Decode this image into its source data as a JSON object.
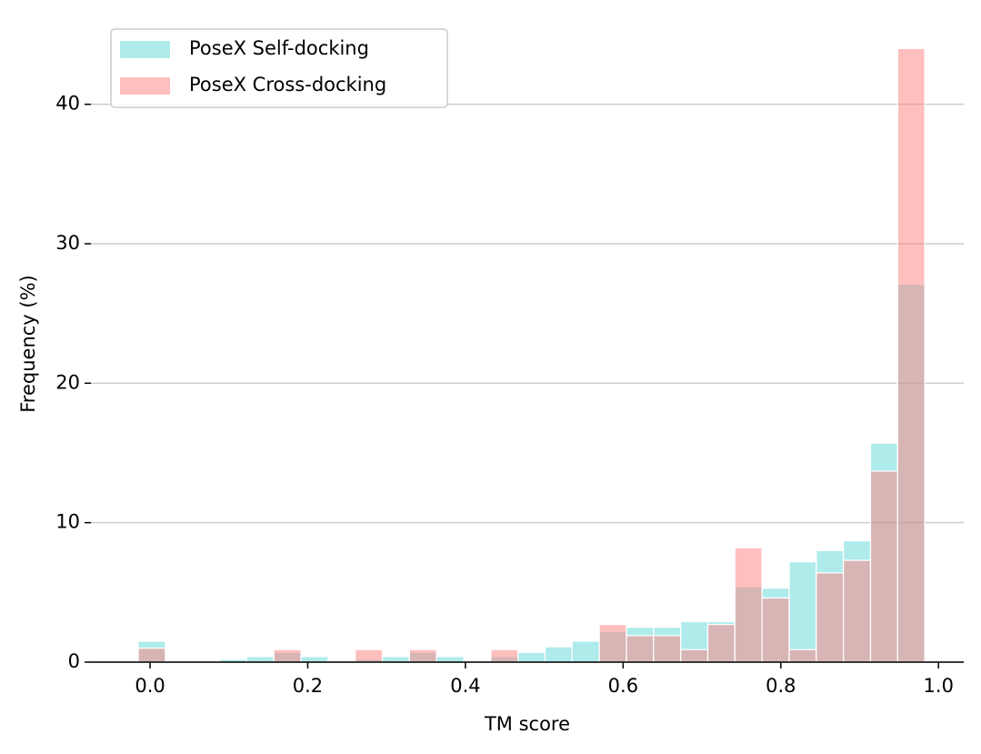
{
  "chart_data": {
    "type": "histogram",
    "xlabel": "TM score",
    "ylabel": "Frequency (%)",
    "bins": [
      -0.015,
      0.0194,
      0.0538,
      0.0882,
      0.1226,
      0.157,
      0.1914,
      0.2258,
      0.2602,
      0.2946,
      0.329,
      0.3634,
      0.3978,
      0.4322,
      0.4666,
      0.501,
      0.5354,
      0.5698,
      0.6042,
      0.6386,
      0.673,
      0.7074,
      0.7418,
      0.7762,
      0.8106,
      0.845,
      0.8794,
      0.9138,
      0.9482,
      0.9826
    ],
    "series": [
      {
        "name": "PoseX Self-docking",
        "color": "#40d0d0",
        "opacity": 0.42,
        "values": [
          1.5,
          0,
          0,
          0.2,
          0.4,
          0.7,
          0.4,
          0,
          0.2,
          0.4,
          0.7,
          0.4,
          0,
          0.4,
          0.7,
          1.1,
          1.5,
          2.2,
          2.5,
          2.5,
          2.9,
          2.9,
          5.4,
          5.3,
          7.2,
          8.0,
          8.7,
          15.7,
          27.1
        ]
      },
      {
        "name": "PoseX Cross-docking",
        "color": "#ff7f7f",
        "opacity": 0.5,
        "values": [
          1.0,
          0,
          0,
          0,
          0,
          0.9,
          0,
          0,
          0.9,
          0,
          0.9,
          0,
          0,
          0.9,
          0,
          0,
          0,
          2.7,
          1.9,
          1.9,
          0.9,
          2.7,
          8.2,
          4.6,
          0.9,
          6.4,
          7.3,
          13.7,
          44.0
        ]
      }
    ],
    "xlim": [
      -0.075,
      1.032
    ],
    "ylim": [
      0,
      45
    ],
    "xticks": [
      {
        "value": 0,
        "label": "0.0"
      },
      {
        "value": 0.2,
        "label": "0.2"
      },
      {
        "value": 0.4,
        "label": "0.4"
      },
      {
        "value": 0.6,
        "label": "0.6"
      },
      {
        "value": 0.8,
        "label": "0.8"
      },
      {
        "value": 1,
        "label": "1.0"
      }
    ],
    "yticks": [
      0,
      10,
      20,
      30,
      40
    ],
    "grid": true,
    "legend": "upper left"
  }
}
